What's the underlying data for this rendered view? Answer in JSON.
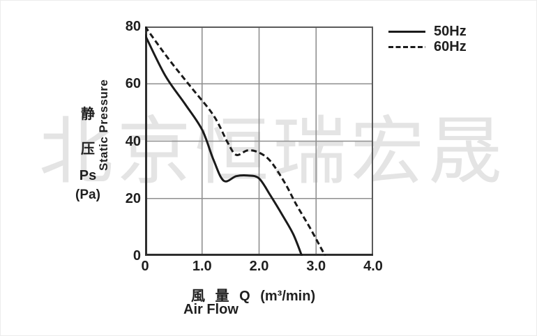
{
  "watermark": {
    "text": "北京恒瑞宏晟"
  },
  "y_axis": {
    "labels_stacked": [
      "静",
      "压",
      "Ps",
      "(Pa)"
    ],
    "title_vertical": "Static Pressure",
    "ticks": [
      "80",
      "60",
      "40",
      "20",
      "0"
    ]
  },
  "x_axis": {
    "ticks": [
      "0",
      "1.0",
      "2.0",
      "3.0",
      "4.0"
    ],
    "title_cn": "風 量 Q (m³/min)",
    "title_en": "Air Flow"
  },
  "legend": [
    {
      "label": "50Hz",
      "style": "solid"
    },
    {
      "label": "60Hz",
      "style": "dashed"
    }
  ],
  "colors": {
    "curve": "#1a1a1a",
    "grid": "#8f8f8f",
    "frame": "#5a5a5a",
    "axis": "#2e2e2e",
    "text": "#1f1f1f",
    "watermark": "#e4e4e4"
  },
  "chart_data": {
    "type": "line",
    "title": "",
    "xlabel": "Air Flow Q (m³/min)",
    "ylabel": "Static Pressure Ps (Pa)",
    "xlim": [
      0,
      4.0
    ],
    "ylim": [
      0,
      80
    ],
    "x_ticks": [
      0,
      1.0,
      2.0,
      3.0,
      4.0
    ],
    "y_ticks": [
      0,
      20,
      40,
      60,
      80
    ],
    "x_gridlines": [
      1.0,
      2.0,
      3.0
    ],
    "y_gridlines": [
      20,
      40,
      60
    ],
    "grid": true,
    "legend_position": "top-right",
    "series": [
      {
        "name": "50Hz",
        "line": "solid",
        "points": [
          [
            0,
            77
          ],
          [
            0.35,
            63
          ],
          [
            0.7,
            53
          ],
          [
            1.0,
            44
          ],
          [
            1.2,
            33.5
          ],
          [
            1.38,
            26.2
          ],
          [
            1.6,
            27.8
          ],
          [
            1.8,
            28
          ],
          [
            2.0,
            27
          ],
          [
            2.2,
            21
          ],
          [
            2.4,
            14.5
          ],
          [
            2.6,
            7.5
          ],
          [
            2.75,
            0
          ]
        ]
      },
      {
        "name": "60Hz",
        "line": "dashed",
        "points": [
          [
            0,
            80
          ],
          [
            0.4,
            69
          ],
          [
            0.8,
            59
          ],
          [
            1.2,
            49
          ],
          [
            1.45,
            39.5
          ],
          [
            1.6,
            35.2
          ],
          [
            1.8,
            36.8
          ],
          [
            2.0,
            36
          ],
          [
            2.2,
            33
          ],
          [
            2.45,
            25.5
          ],
          [
            2.65,
            18
          ],
          [
            2.9,
            9.5
          ],
          [
            3.16,
            0
          ]
        ]
      }
    ]
  }
}
